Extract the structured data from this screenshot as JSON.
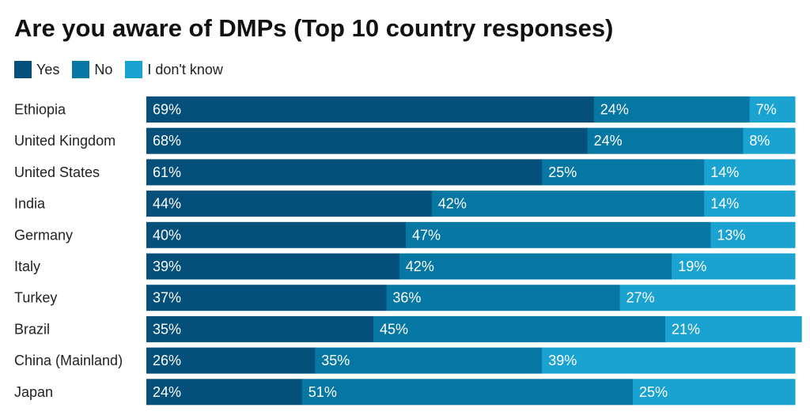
{
  "chart_data": {
    "type": "bar",
    "orientation": "horizontal",
    "stacked": true,
    "title": "Are you aware of DMPs (Top 10 country responses)",
    "categories": [
      "Ethiopia",
      "United Kingdom",
      "United States",
      "India",
      "Germany",
      "Italy",
      "Turkey",
      "Brazil",
      "China (Mainland)",
      "Japan"
    ],
    "series": [
      {
        "name": "Yes",
        "color": "#04507a",
        "values": [
          69,
          68,
          61,
          44,
          40,
          39,
          37,
          35,
          26,
          24
        ]
      },
      {
        "name": "No",
        "color": "#0676a3",
        "values": [
          24,
          24,
          25,
          42,
          47,
          42,
          36,
          45,
          35,
          51
        ]
      },
      {
        "name": "I don't know",
        "color": "#1aa3d1",
        "values": [
          7,
          8,
          14,
          14,
          13,
          19,
          27,
          21,
          39,
          25
        ]
      }
    ],
    "value_suffix": "%",
    "xlim": [
      0,
      100
    ],
    "legend": "top-left",
    "grid": false
  }
}
